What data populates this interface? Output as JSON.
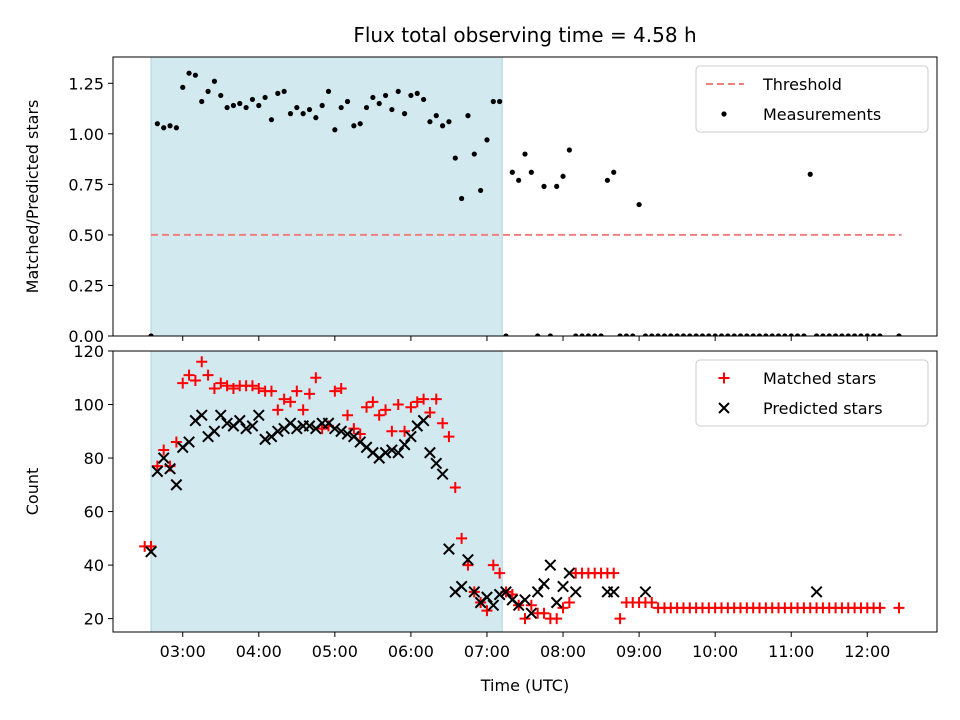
{
  "figure": {
    "title": "Flux total observing time = 4.58 h"
  },
  "chart_data": [
    {
      "type": "scatter",
      "title": "Flux total observing time = 4.58 h",
      "xlabel": "",
      "ylabel": "Matched/Predicted stars",
      "xlim": [
        "02:05",
        "12:55"
      ],
      "ylim": [
        0,
        1.38
      ],
      "yticks": [
        "0.00",
        "0.25",
        "0.50",
        "0.75",
        "1.00",
        "1.25"
      ],
      "ytick_values": [
        0,
        0.25,
        0.5,
        0.75,
        1.0,
        1.25
      ],
      "shaded_span": [
        "02:35",
        "07:12"
      ],
      "shaded_color": "#d3e9f0",
      "legend_position": "upper right",
      "threshold": {
        "name": "Threshold",
        "value": 0.5,
        "x_range": [
          "02:35",
          "12:27"
        ],
        "color": "#f08080",
        "style": "dashed"
      },
      "series": [
        {
          "name": "Measurements",
          "marker": "dot",
          "color": "#000000",
          "x": [
            "02:35",
            "02:40",
            "02:45",
            "02:50",
            "02:55",
            "03:00",
            "03:05",
            "03:10",
            "03:15",
            "03:20",
            "03:25",
            "03:30",
            "03:35",
            "03:40",
            "03:45",
            "03:50",
            "03:55",
            "04:00",
            "04:05",
            "04:10",
            "04:15",
            "04:20",
            "04:25",
            "04:30",
            "04:35",
            "04:40",
            "04:45",
            "04:50",
            "04:55",
            "05:00",
            "05:05",
            "05:10",
            "05:15",
            "05:20",
            "05:25",
            "05:30",
            "05:35",
            "05:40",
            "05:45",
            "05:50",
            "05:55",
            "06:00",
            "06:05",
            "06:10",
            "06:15",
            "06:20",
            "06:25",
            "06:30",
            "06:35",
            "06:40",
            "06:45",
            "06:50",
            "06:55",
            "07:00",
            "07:05",
            "07:10",
            "07:15",
            "07:20",
            "07:25",
            "07:30",
            "07:35",
            "07:40",
            "07:45",
            "07:50",
            "07:55",
            "08:00",
            "08:05",
            "08:10",
            "08:15",
            "08:20",
            "08:25",
            "08:30",
            "08:35",
            "08:40",
            "08:45",
            "08:50",
            "08:55",
            "09:00",
            "09:05",
            "09:10",
            "09:15",
            "09:20",
            "09:25",
            "09:30",
            "09:35",
            "09:40",
            "09:45",
            "09:50",
            "09:55",
            "10:00",
            "10:05",
            "10:10",
            "10:15",
            "10:20",
            "10:25",
            "10:30",
            "10:35",
            "10:40",
            "10:45",
            "10:50",
            "10:55",
            "11:00",
            "11:05",
            "11:10",
            "11:15",
            "11:20",
            "11:25",
            "11:30",
            "11:35",
            "11:40",
            "11:45",
            "11:50",
            "11:55",
            "12:00",
            "12:05",
            "12:10",
            "12:25"
          ],
          "y": [
            0,
            1.05,
            1.03,
            1.04,
            1.03,
            1.23,
            1.3,
            1.29,
            1.16,
            1.21,
            1.26,
            1.19,
            1.13,
            1.14,
            1.15,
            1.13,
            1.17,
            1.14,
            1.18,
            1.07,
            1.2,
            1.21,
            1.1,
            1.13,
            1.1,
            1.12,
            1.08,
            1.14,
            1.21,
            1.02,
            1.13,
            1.16,
            1.04,
            1.05,
            1.13,
            1.18,
            1.15,
            1.19,
            1.12,
            1.21,
            1.1,
            1.19,
            1.2,
            1.17,
            1.06,
            1.09,
            1.04,
            1.06,
            0.88,
            0.68,
            1.09,
            0.9,
            0.72,
            0.97,
            1.16,
            1.16,
            0,
            0.81,
            0.77,
            0.9,
            0.81,
            0,
            0.74,
            0,
            0.74,
            0.79,
            0.92,
            0,
            0,
            0,
            0,
            0,
            0.77,
            0.81,
            0,
            0,
            0,
            0.65,
            0,
            0,
            0,
            0,
            0,
            0,
            0,
            0,
            0,
            0,
            0,
            0,
            0,
            0,
            0,
            0,
            0,
            0,
            0,
            0,
            0,
            0,
            0,
            0,
            0,
            0,
            0.8,
            0,
            0,
            0,
            0,
            0,
            0,
            0,
            0,
            0,
            0,
            0,
            0
          ]
        }
      ]
    },
    {
      "type": "scatter",
      "title": "",
      "xlabel": "Time (UTC)",
      "ylabel": "Count",
      "xlim": [
        "02:05",
        "12:55"
      ],
      "ylim": [
        15,
        120
      ],
      "xticks": [
        "03:00",
        "04:00",
        "05:00",
        "06:00",
        "07:00",
        "08:00",
        "09:00",
        "10:00",
        "11:00",
        "12:00"
      ],
      "yticks": [
        "20",
        "40",
        "60",
        "80",
        "100",
        "120"
      ],
      "ytick_values": [
        20,
        40,
        60,
        80,
        100,
        120
      ],
      "shaded_span": [
        "02:35",
        "07:12"
      ],
      "shaded_color": "#d3e9f0",
      "legend_position": "upper right",
      "series": [
        {
          "name": "Matched stars",
          "marker": "plus",
          "color": "#ff0000",
          "x": [
            "02:30",
            "02:35",
            "02:40",
            "02:45",
            "02:50",
            "02:55",
            "03:00",
            "03:05",
            "03:10",
            "03:15",
            "03:20",
            "03:25",
            "03:30",
            "03:35",
            "03:40",
            "03:45",
            "03:50",
            "03:55",
            "04:00",
            "04:05",
            "04:10",
            "04:15",
            "04:20",
            "04:25",
            "04:30",
            "04:35",
            "04:40",
            "04:45",
            "04:50",
            "04:55",
            "05:00",
            "05:05",
            "05:10",
            "05:15",
            "05:20",
            "05:25",
            "05:30",
            "05:35",
            "05:40",
            "05:45",
            "05:50",
            "05:55",
            "06:00",
            "06:05",
            "06:10",
            "06:15",
            "06:20",
            "06:25",
            "06:30",
            "06:35",
            "06:40",
            "06:45",
            "06:50",
            "06:55",
            "07:00",
            "07:05",
            "07:10",
            "07:15",
            "07:20",
            "07:25",
            "07:30",
            "07:35",
            "07:40",
            "07:45",
            "07:50",
            "07:55",
            "08:00",
            "08:05",
            "08:10",
            "08:15",
            "08:20",
            "08:25",
            "08:30",
            "08:35",
            "08:40",
            "08:45",
            "08:50",
            "08:55",
            "09:00",
            "09:05",
            "09:10",
            "09:15",
            "09:20",
            "09:25",
            "09:30",
            "09:35",
            "09:40",
            "09:45",
            "09:50",
            "09:55",
            "10:00",
            "10:05",
            "10:10",
            "10:15",
            "10:20",
            "10:25",
            "10:30",
            "10:35",
            "10:40",
            "10:45",
            "10:50",
            "10:55",
            "11:00",
            "11:05",
            "11:10",
            "11:15",
            "11:20",
            "11:25",
            "11:30",
            "11:35",
            "11:40",
            "11:45",
            "11:50",
            "11:55",
            "12:00",
            "12:05",
            "12:10",
            "12:25"
          ],
          "y": [
            47,
            47,
            77,
            83,
            77,
            86,
            108,
            111,
            109,
            116,
            111,
            106,
            108,
            107,
            106,
            107,
            107,
            107,
            106,
            105,
            105,
            98,
            102,
            101,
            105,
            98,
            104,
            110,
            91,
            92,
            105,
            106,
            96,
            91,
            89,
            99,
            101,
            96,
            98,
            90,
            100,
            90,
            99,
            101,
            102,
            97,
            102,
            93,
            88,
            69,
            50,
            40,
            30,
            26,
            23,
            40,
            37,
            30,
            29,
            25,
            20,
            25,
            22,
            22,
            20,
            20,
            24,
            26,
            37,
            37,
            37,
            37,
            37,
            37,
            37,
            20,
            26,
            26,
            26,
            26,
            26,
            24,
            24,
            24,
            24,
            24,
            24,
            24,
            24,
            24,
            24,
            24,
            24,
            24,
            24,
            24,
            24,
            24,
            24,
            24,
            24,
            24,
            24,
            24,
            24,
            24,
            24,
            24,
            24,
            24,
            24,
            24,
            24,
            24,
            24,
            24,
            24,
            24
          ]
        },
        {
          "name": "Predicted stars",
          "marker": "x",
          "color": "#000000",
          "x": [
            "02:35",
            "02:40",
            "02:45",
            "02:50",
            "02:55",
            "03:00",
            "03:05",
            "03:10",
            "03:15",
            "03:20",
            "03:25",
            "03:30",
            "03:35",
            "03:40",
            "03:45",
            "03:50",
            "03:55",
            "04:00",
            "04:05",
            "04:10",
            "04:15",
            "04:20",
            "04:25",
            "04:30",
            "04:35",
            "04:40",
            "04:45",
            "04:50",
            "04:55",
            "05:00",
            "05:05",
            "05:10",
            "05:15",
            "05:20",
            "05:25",
            "05:30",
            "05:35",
            "05:40",
            "05:45",
            "05:50",
            "05:55",
            "06:00",
            "06:05",
            "06:10",
            "06:15",
            "06:20",
            "06:25",
            "06:30",
            "06:35",
            "06:40",
            "06:45",
            "06:50",
            "06:55",
            "07:00",
            "07:05",
            "07:10",
            "07:15",
            "07:20",
            "07:25",
            "07:30",
            "07:35",
            "07:40",
            "07:45",
            "07:50",
            "07:55",
            "08:00",
            "08:05",
            "08:10",
            "08:35",
            "08:40",
            "09:05",
            "11:20"
          ],
          "y": [
            45,
            75,
            80,
            76,
            70,
            84,
            86,
            94,
            96,
            88,
            90,
            96,
            93,
            92,
            94,
            91,
            92,
            96,
            87,
            88,
            90,
            91,
            93,
            91,
            92,
            92,
            91,
            93,
            93,
            91,
            90,
            89,
            88,
            86,
            84,
            82,
            80,
            82,
            83,
            82,
            85,
            88,
            92,
            94,
            82,
            78,
            74,
            46,
            30,
            32,
            42,
            30,
            26,
            28,
            25,
            29,
            30,
            27,
            25,
            27,
            22,
            30,
            33,
            40,
            26,
            32,
            37,
            30,
            30,
            30,
            30,
            30
          ]
        }
      ]
    }
  ]
}
